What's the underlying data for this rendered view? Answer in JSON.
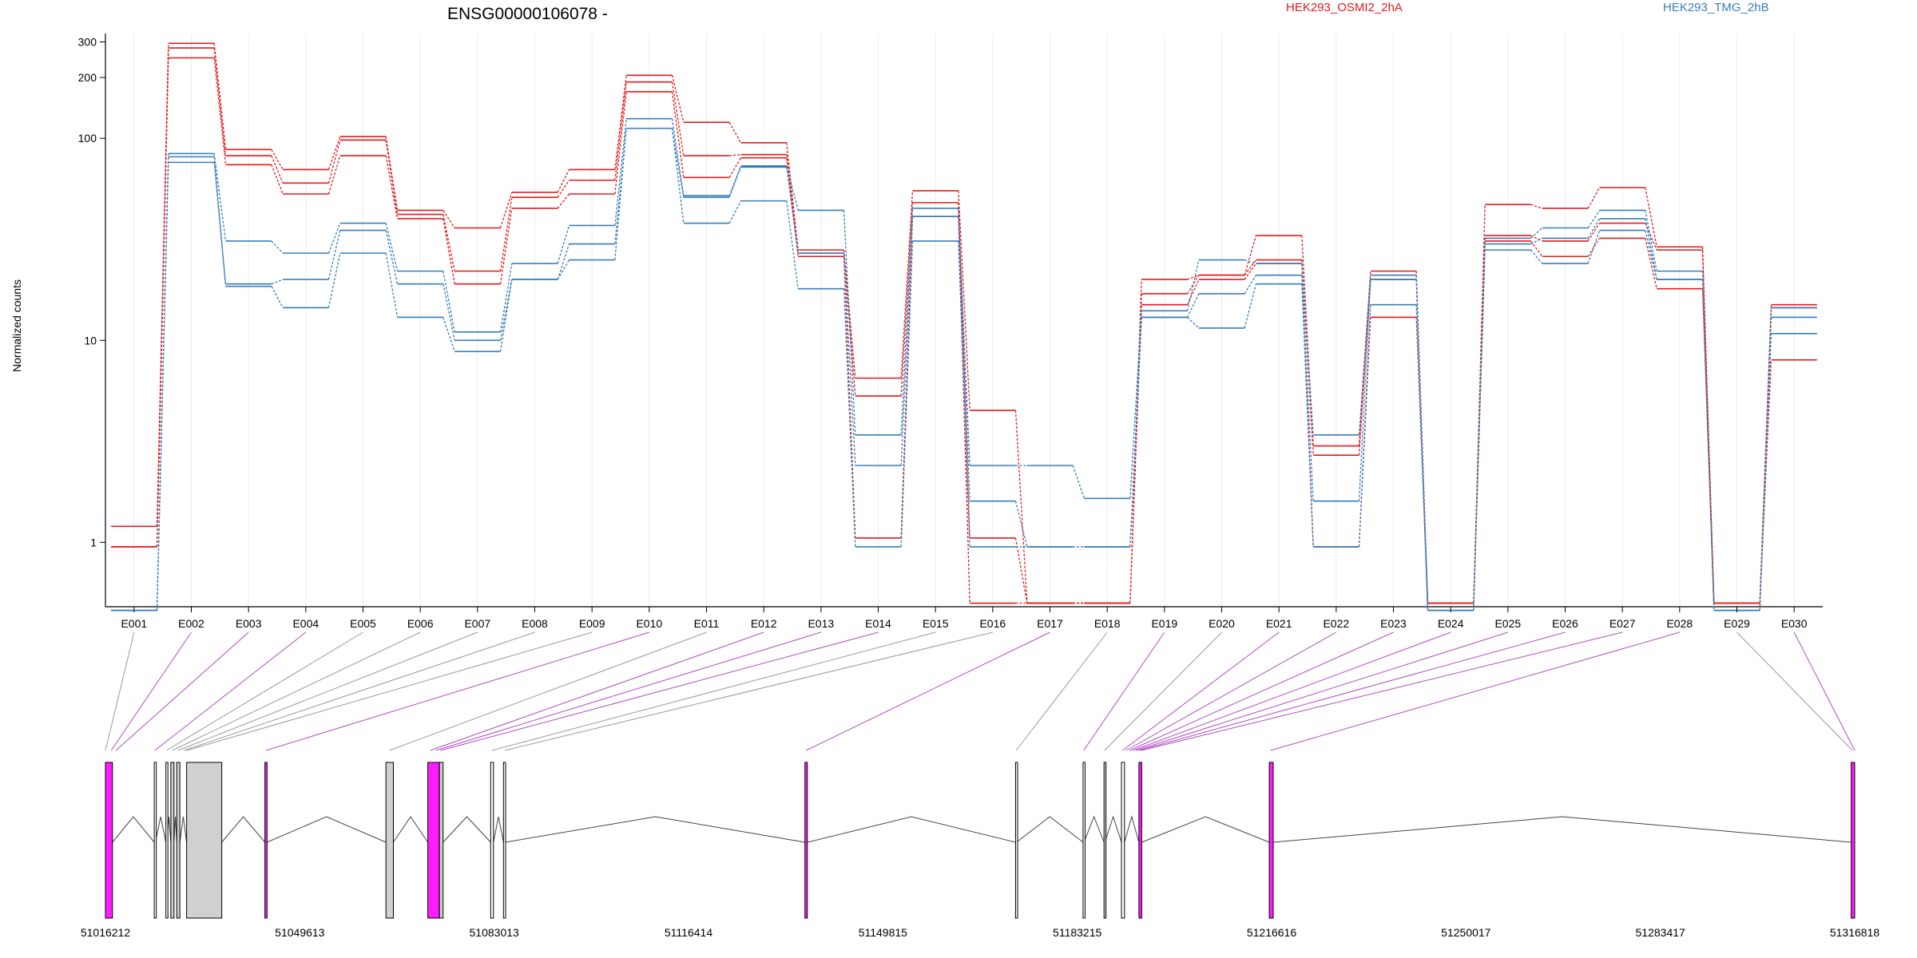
{
  "chart_data": {
    "type": "line",
    "title": "ENSG00000106078 -",
    "ylabel": "Normalized counts",
    "xlabel": "",
    "y_scale": "log",
    "ylim": [
      0.48,
      330
    ],
    "y_ticks": [
      1,
      10,
      100,
      200,
      300
    ],
    "grid": "vertical",
    "legend_position": "top",
    "legend": [
      {
        "label": "HEK293_OSMI2_2hA",
        "color": "#e41a1c"
      },
      {
        "label": "HEK293_TMG_2hB",
        "color": "#377eb8"
      }
    ],
    "categories": [
      "E001",
      "E002",
      "E003",
      "E004",
      "E005",
      "E006",
      "E007",
      "E008",
      "E009",
      "E010",
      "E011",
      "E012",
      "E013",
      "E014",
      "E015",
      "E016",
      "E017",
      "E018",
      "E019",
      "E020",
      "E021",
      "E022",
      "E023",
      "E024",
      "E025",
      "E026",
      "E027",
      "E028",
      "E029",
      "E030"
    ],
    "series": [
      {
        "group": "HEK293_OSMI2_2hA",
        "color": "#e41a1c",
        "values": [
          1.2,
          295,
          88,
          70,
          102,
          44,
          36,
          54,
          70,
          205,
          120,
          95,
          28,
          6.5,
          55,
          4.5,
          0.5,
          0.5,
          20,
          21,
          33,
          3,
          22,
          0.5,
          47,
          45,
          57,
          29,
          0.5,
          15
        ]
      },
      {
        "group": "HEK293_OSMI2_2hA",
        "color": "#e41a1c",
        "values": [
          0.95,
          280,
          82,
          60,
          98,
          42,
          22,
          51,
          62,
          190,
          82,
          83,
          27,
          5.3,
          48,
          1.05,
          0.5,
          0.5,
          17,
          21,
          25,
          2.7,
          20,
          0.5,
          33,
          31,
          38,
          28,
          0.5,
          14.5
        ]
      },
      {
        "group": "HEK293_OSMI2_2hA",
        "color": "#e41a1c",
        "values": [
          0.95,
          250,
          74,
          53,
          82,
          40,
          19,
          45,
          53,
          170,
          64,
          80,
          26,
          1.05,
          41,
          0.5,
          0.5,
          0.5,
          15,
          20,
          24,
          0.95,
          13,
          0.5,
          31,
          26,
          32,
          18,
          0.5,
          8
        ]
      },
      {
        "group": "HEK293_TMG_2hB",
        "color": "#377eb8",
        "values": [
          0.46,
          84,
          31,
          27,
          38,
          22,
          11,
          24,
          37,
          125,
          52,
          73,
          44,
          3.4,
          45,
          2.4,
          2.4,
          1.65,
          14,
          25,
          24,
          3.4,
          21,
          0.46,
          32,
          36,
          44,
          22,
          0.46,
          14.5
        ]
      },
      {
        "group": "HEK293_TMG_2hB",
        "color": "#377eb8",
        "values": [
          0.46,
          81,
          19,
          20,
          35,
          19,
          10,
          20,
          30,
          112,
          51,
          72,
          27,
          2.4,
          41,
          1.6,
          0.95,
          0.95,
          13,
          17,
          21,
          1.6,
          20,
          0.46,
          30,
          32,
          40,
          20,
          0.46,
          13
        ]
      },
      {
        "group": "HEK293_TMG_2hB",
        "color": "#377eb8",
        "values": [
          0.46,
          76,
          18.5,
          14.5,
          27,
          13,
          8.8,
          20,
          25,
          112,
          38,
          49,
          18,
          0.95,
          31,
          0.95,
          0.95,
          0.95,
          13,
          11.5,
          19,
          0.95,
          15,
          0.46,
          28,
          24,
          35,
          20,
          0.46,
          10.8
        ]
      }
    ],
    "genomic_axis": {
      "tick_labels": [
        "51016212",
        "51049613",
        "51083013",
        "51116414",
        "51149815",
        "51183215",
        "51216616",
        "51250017",
        "51283417",
        "51316818"
      ],
      "range": [
        51016212,
        51316818
      ]
    },
    "gene_model": {
      "exons": [
        {
          "id": "E001",
          "start": 51016212,
          "end": 51017422,
          "type": "magenta"
        },
        {
          "id": "E002",
          "start": 51024602,
          "end": 51024802,
          "type": "black"
        },
        {
          "id": "E003",
          "start": 51026602,
          "end": 51026782,
          "type": "black"
        },
        {
          "id": "E004",
          "start": 51027452,
          "end": 51027992,
          "type": "grey"
        },
        {
          "id": "E005",
          "start": 51028462,
          "end": 51029002,
          "type": "grey"
        },
        {
          "id": "E006",
          "start": 51030162,
          "end": 51036202,
          "type": "grey"
        },
        {
          "id": "E007",
          "start": 51043612,
          "end": 51043982,
          "type": "magenta"
        },
        {
          "id": "E008",
          "start": 51064413,
          "end": 51065693,
          "type": "grey"
        },
        {
          "id": "E009",
          "start": 51071613,
          "end": 51073593,
          "type": "magenta"
        },
        {
          "id": "E010",
          "start": 51073613,
          "end": 51074233,
          "type": "grey"
        },
        {
          "id": "E011",
          "start": 51082413,
          "end": 51082893,
          "type": "black"
        },
        {
          "id": "E012",
          "start": 51084613,
          "end": 51084973,
          "type": "black"
        },
        {
          "id": "E013",
          "start": 51136414,
          "end": 51136834,
          "type": "magenta"
        },
        {
          "id": "E014",
          "start": 51172615,
          "end": 51172775,
          "type": "black"
        },
        {
          "id": "E015",
          "start": 51184215,
          "end": 51184375,
          "type": "black"
        },
        {
          "id": "E016",
          "start": 51187815,
          "end": 51187975,
          "type": "grey"
        },
        {
          "id": "E017",
          "start": 51190815,
          "end": 51191335,
          "type": "black"
        },
        {
          "id": "E018",
          "start": 51193815,
          "end": 51194295,
          "type": "magenta"
        },
        {
          "id": "E019",
          "start": 51216216,
          "end": 51216896,
          "type": "magenta"
        },
        {
          "id": "E020",
          "start": 51316218,
          "end": 51316818,
          "type": "magenta"
        }
      ],
      "links": [
        {
          "exon": "E001",
          "gene_pos": 51016212,
          "color": "#999999"
        },
        {
          "exon": "E002",
          "gene_pos": 51017212,
          "color": "#b04cc0"
        },
        {
          "exon": "E003",
          "gene_pos": 51018012,
          "color": "#b04cc0"
        },
        {
          "exon": "E004",
          "gene_pos": 51024702,
          "color": "#b04cc0"
        },
        {
          "exon": "E005",
          "gene_pos": 51026702,
          "color": "#999999"
        },
        {
          "exon": "E006",
          "gene_pos": 51027702,
          "color": "#999999"
        },
        {
          "exon": "E007",
          "gene_pos": 51028702,
          "color": "#999999"
        },
        {
          "exon": "E008",
          "gene_pos": 51029702,
          "color": "#999999"
        },
        {
          "exon": "E009",
          "gene_pos": 51030202,
          "color": "#999999"
        },
        {
          "exon": "E010",
          "gene_pos": 51043802,
          "color": "#b04cc0"
        },
        {
          "exon": "E011",
          "gene_pos": 51065013,
          "color": "#999999"
        },
        {
          "exon": "E012",
          "gene_pos": 51072013,
          "color": "#b04cc0"
        },
        {
          "exon": "E013",
          "gene_pos": 51073013,
          "color": "#b04cc0"
        },
        {
          "exon": "E014",
          "gene_pos": 51073813,
          "color": "#b04cc0"
        },
        {
          "exon": "E015",
          "gene_pos": 51082613,
          "color": "#999999"
        },
        {
          "exon": "E016",
          "gene_pos": 51084813,
          "color": "#999999"
        },
        {
          "exon": "E017",
          "gene_pos": 51136614,
          "color": "#b04cc0"
        },
        {
          "exon": "E018",
          "gene_pos": 51172715,
          "color": "#999999"
        },
        {
          "exon": "E019",
          "gene_pos": 51184315,
          "color": "#b04cc0"
        },
        {
          "exon": "E020",
          "gene_pos": 51187915,
          "color": "#999999"
        },
        {
          "exon": "E021",
          "gene_pos": 51191015,
          "color": "#b04cc0"
        },
        {
          "exon": "E022",
          "gene_pos": 51191615,
          "color": "#b04cc0"
        },
        {
          "exon": "E023",
          "gene_pos": 51192215,
          "color": "#b04cc0"
        },
        {
          "exon": "E024",
          "gene_pos": 51192815,
          "color": "#b04cc0"
        },
        {
          "exon": "E025",
          "gene_pos": 51193315,
          "color": "#b04cc0"
        },
        {
          "exon": "E026",
          "gene_pos": 51193815,
          "color": "#b04cc0"
        },
        {
          "exon": "E027",
          "gene_pos": 51194215,
          "color": "#b04cc0"
        },
        {
          "exon": "E028",
          "gene_pos": 51216416,
          "color": "#b04cc0"
        },
        {
          "exon": "E029",
          "gene_pos": 51316418,
          "color": "#999999"
        },
        {
          "exon": "E030",
          "gene_pos": 51316818,
          "color": "#b04cc0"
        }
      ]
    }
  }
}
